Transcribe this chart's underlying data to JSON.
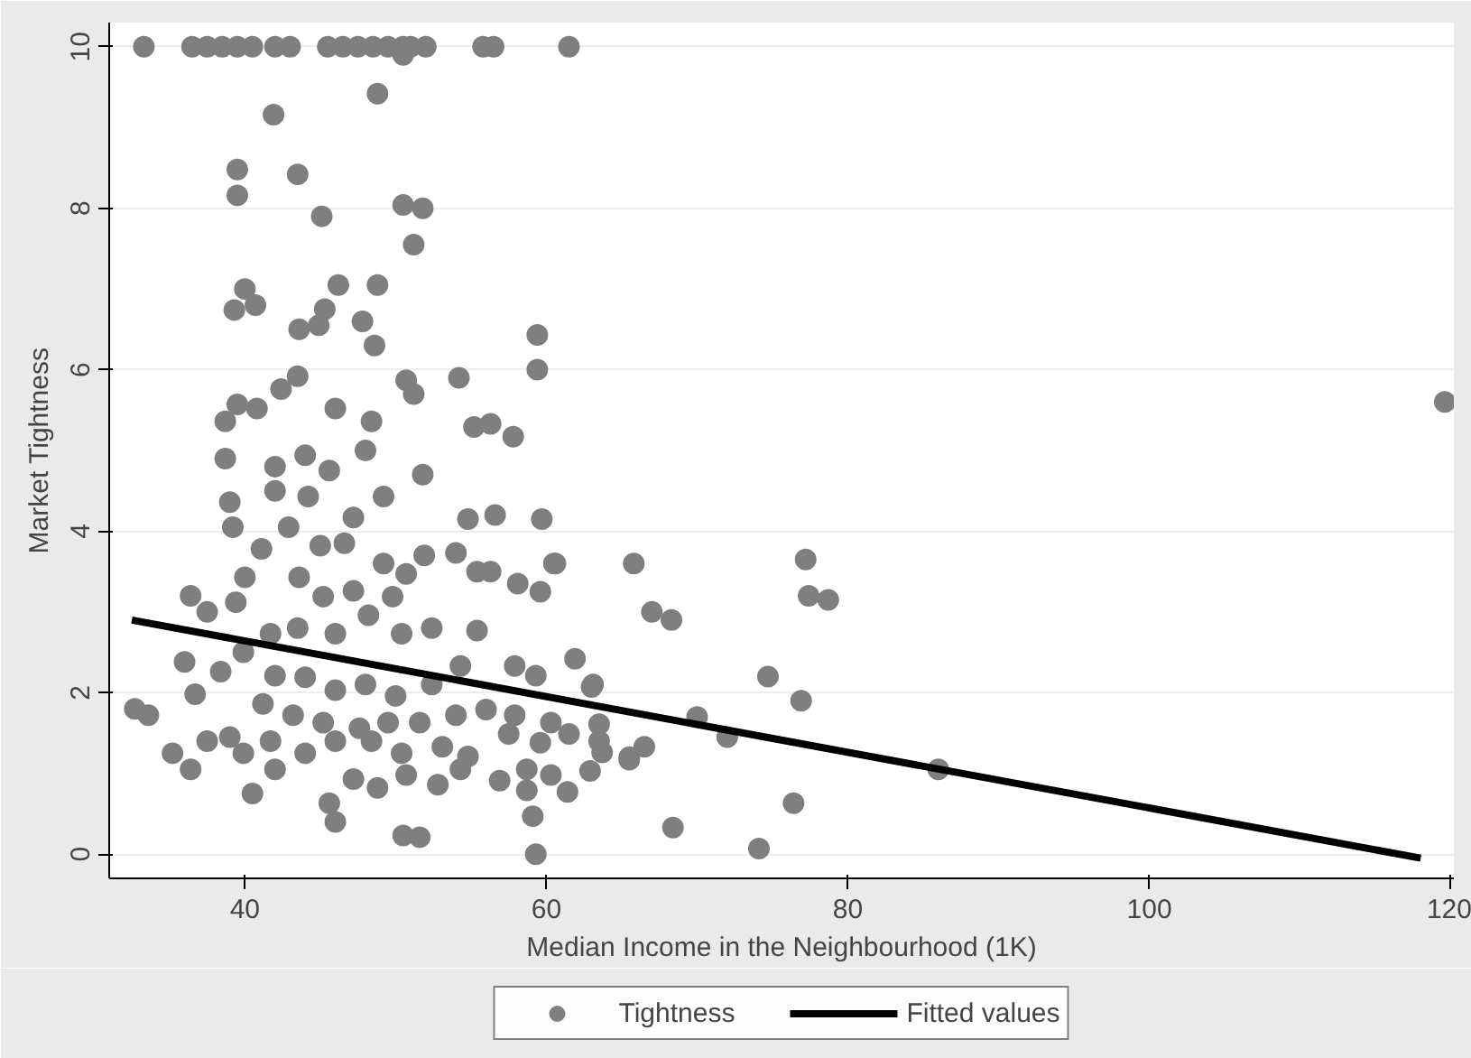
{
  "chart_data": {
    "type": "scatter",
    "xlabel": "Median Income in the Neighbourhood (1K)",
    "ylabel": "Market Tightness",
    "xlim": [
      31,
      120.2
    ],
    "ylim": [
      -0.3,
      10.3
    ],
    "xticks": [
      40,
      60,
      80,
      100,
      120
    ],
    "yticks": [
      0,
      2,
      4,
      6,
      8,
      10
    ],
    "grid": "y",
    "legend": "bottom",
    "series": [
      {
        "name": "Tightness",
        "marker": "circle",
        "color": "#7f7f7f",
        "x": [
          33.3,
          36.5,
          37.5,
          38.5,
          39.5,
          40.5,
          42.0,
          43.0,
          45.5,
          46.5,
          47.5,
          48.5,
          49.5,
          50.5,
          51.0,
          52.0,
          55.8,
          56.5,
          61.5,
          50.5,
          48.8,
          41.9,
          39.5,
          39.5,
          43.5,
          45.1,
          50.5,
          51.8,
          51.2,
          39.3,
          40.0,
          40.7,
          43.6,
          44.9,
          45.3,
          46.2,
          47.8,
          48.6,
          48.8,
          50.7,
          51.2,
          54.2,
          59.4,
          59.4,
          42.4,
          43.5,
          39.5,
          40.8,
          38.7,
          46.0,
          48.4,
          55.2,
          56.3,
          57.8,
          59.7,
          60.6,
          65.8,
          67.0,
          68.3,
          77.2,
          77.4,
          78.7,
          74.7,
          76.9,
          76.4,
          74.1,
          68.4,
          86.0,
          63.0,
          70.0,
          72.0,
          63.5,
          66.5,
          65.5,
          119.6,
          32.7,
          33.6,
          35.2,
          36.4,
          36.0,
          36.4,
          37.5,
          38.7,
          39.0,
          39.2,
          40.5,
          42.0,
          38.4,
          37.5,
          39.0,
          39.9,
          36.7,
          42.0,
          42.0,
          44.2,
          44.0,
          45.6,
          47.2,
          48.0,
          49.2,
          51.8,
          54.8,
          56.6,
          60.5,
          58.1,
          59.6,
          54.0,
          55.4,
          56.3,
          41.1,
          40.0,
          39.4,
          42.9,
          45.0,
          46.6,
          49.2,
          50.7,
          51.9,
          47.2,
          49.8,
          43.6,
          45.2,
          41.7,
          43.5,
          46.0,
          48.2,
          50.4,
          52.4,
          55.4,
          39.9,
          42.0,
          44.0,
          46.0,
          48.0,
          50.0,
          52.4,
          54.3,
          57.9,
          59.3,
          61.9,
          63.1,
          41.2,
          43.2,
          45.2,
          47.6,
          49.5,
          51.6,
          54.0,
          56.0,
          57.9,
          60.3,
          63.5,
          41.7,
          44.0,
          46.0,
          48.4,
          50.4,
          53.1,
          54.8,
          57.5,
          59.6,
          61.5,
          63.7,
          65.5,
          47.2,
          48.8,
          50.7,
          52.8,
          54.3,
          56.9,
          58.7,
          60.3,
          61.4,
          62.9,
          58.7,
          59.1,
          59.3,
          45.6,
          46.0,
          50.5,
          51.6
        ],
        "values": [
          10,
          10,
          10,
          10,
          10,
          10,
          10,
          10,
          10,
          10,
          10,
          10,
          10,
          10,
          10,
          10,
          10,
          10,
          10,
          9.9,
          9.42,
          9.16,
          8.48,
          8.16,
          8.42,
          7.9,
          8.04,
          8.0,
          7.55,
          6.74,
          7.0,
          6.8,
          6.5,
          6.55,
          6.75,
          7.05,
          6.6,
          6.3,
          7.05,
          5.87,
          5.7,
          5.9,
          6.43,
          6.0,
          5.76,
          5.92,
          5.57,
          5.52,
          5.36,
          5.52,
          5.36,
          5.29,
          5.33,
          5.17,
          4.15,
          3.6,
          3.6,
          3.0,
          2.9,
          3.65,
          3.2,
          3.15,
          2.2,
          1.9,
          0.63,
          0.07,
          0.33,
          1.05,
          2.07,
          1.7,
          1.45,
          1.4,
          1.33,
          1.2,
          5.6,
          1.8,
          1.72,
          1.25,
          1.05,
          2.38,
          3.2,
          3.0,
          4.9,
          4.36,
          4.05,
          0.75,
          1.05,
          2.26,
          1.4,
          1.45,
          1.25,
          1.98,
          4.8,
          4.5,
          4.43,
          4.94,
          4.75,
          4.17,
          5.0,
          4.43,
          4.7,
          4.15,
          4.2,
          3.6,
          3.35,
          3.25,
          3.73,
          3.5,
          3.5,
          3.78,
          3.43,
          3.12,
          4.05,
          3.82,
          3.85,
          3.6,
          3.47,
          3.7,
          3.26,
          3.19,
          3.43,
          3.19,
          2.73,
          2.8,
          2.73,
          2.96,
          2.73,
          2.8,
          2.77,
          2.5,
          2.21,
          2.19,
          2.03,
          2.1,
          1.96,
          2.1,
          2.33,
          2.33,
          2.21,
          2.42,
          2.1,
          1.86,
          1.72,
          1.63,
          1.56,
          1.63,
          1.63,
          1.72,
          1.79,
          1.72,
          1.63,
          1.61,
          1.4,
          1.25,
          1.4,
          1.4,
          1.25,
          1.33,
          1.21,
          1.49,
          1.38,
          1.49,
          1.26,
          1.17,
          0.93,
          0.82,
          0.98,
          0.86,
          1.05,
          0.91,
          1.05,
          0.98,
          0.77,
          1.03,
          0.79,
          0.47,
          0.0,
          0.63,
          0.4,
          0.23,
          0.21
        ]
      },
      {
        "name": "Fitted values",
        "type": "line",
        "color": "#000000",
        "line_style": "solid",
        "marker": "none",
        "x": [
          32.5,
          118.0
        ],
        "values": [
          2.9,
          -0.05
        ]
      }
    ]
  }
}
